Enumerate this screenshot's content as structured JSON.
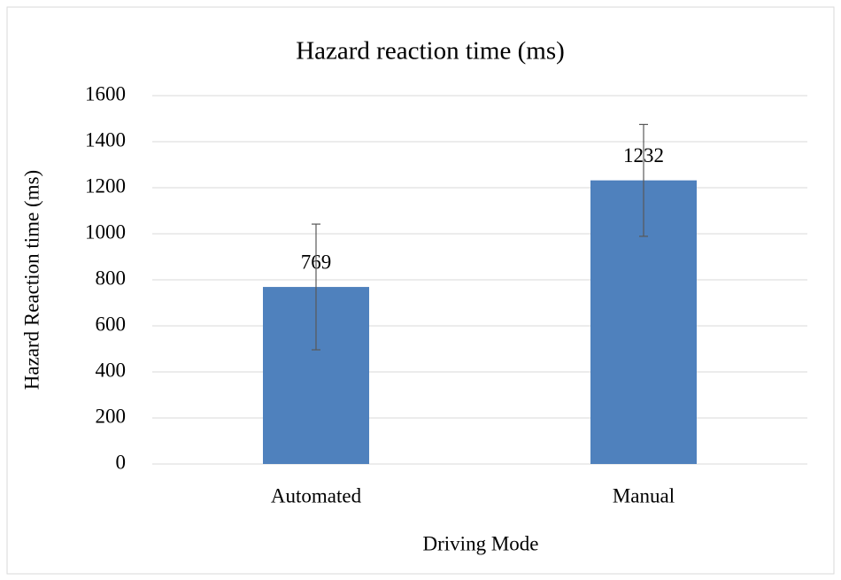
{
  "chart_data": {
    "type": "bar",
    "title": "Hazard reaction time (ms)",
    "x_label": "Driving Mode",
    "y_label": "Hazard Reaction time (ms)",
    "categories": [
      "Automated",
      "Manual"
    ],
    "values": [
      769,
      1232
    ],
    "errors": [
      273,
      243
    ],
    "color": "#4f81bd",
    "ylim": [
      0,
      1600
    ],
    "yticks": [
      0,
      200,
      400,
      600,
      800,
      1000,
      1200,
      1400,
      1600
    ],
    "grid": true
  }
}
